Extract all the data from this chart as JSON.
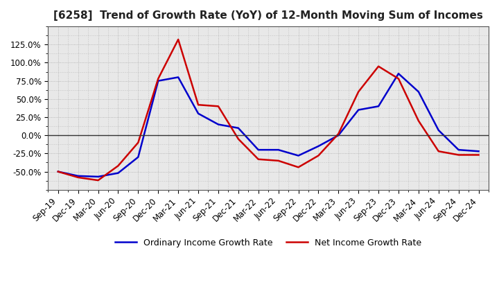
{
  "title": "[6258]  Trend of Growth Rate (YoY) of 12-Month Moving Sum of Incomes",
  "x_labels": [
    "Sep-19",
    "Dec-19",
    "Mar-20",
    "Jun-20",
    "Sep-20",
    "Dec-20",
    "Mar-21",
    "Jun-21",
    "Sep-21",
    "Dec-21",
    "Mar-22",
    "Jun-22",
    "Sep-22",
    "Dec-22",
    "Mar-23",
    "Jun-23",
    "Sep-23",
    "Dec-23",
    "Mar-24",
    "Jun-24",
    "Sep-24",
    "Dec-24"
  ],
  "ordinary_income": [
    -50.0,
    -56.0,
    -57.0,
    -52.0,
    -30.0,
    75.0,
    80.0,
    30.0,
    15.0,
    10.0,
    -20.0,
    -20.0,
    -28.0,
    -15.0,
    0.0,
    35.0,
    40.0,
    85.0,
    60.0,
    7.0,
    -20.0,
    -22.0
  ],
  "net_income": [
    -50.0,
    -58.0,
    -62.0,
    -42.0,
    -10.0,
    78.0,
    132.0,
    42.0,
    40.0,
    -5.0,
    -33.0,
    -35.0,
    -44.0,
    -28.0,
    2.0,
    60.0,
    95.0,
    78.0,
    20.0,
    -22.0,
    -27.0,
    -27.0
  ],
  "ordinary_color": "#0000CC",
  "net_color": "#CC0000",
  "ylim": [
    -75.0,
    150.0
  ],
  "yticks": [
    -50.0,
    -25.0,
    0.0,
    25.0,
    50.0,
    75.0,
    100.0,
    125.0
  ],
  "background_color": "#FFFFFF",
  "plot_bg_color": "#E8E8E8",
  "grid_color": "#AAAAAA",
  "legend_ordinary": "Ordinary Income Growth Rate",
  "legend_net": "Net Income Growth Rate",
  "title_fontsize": 11,
  "tick_fontsize": 8.5,
  "legend_fontsize": 9
}
